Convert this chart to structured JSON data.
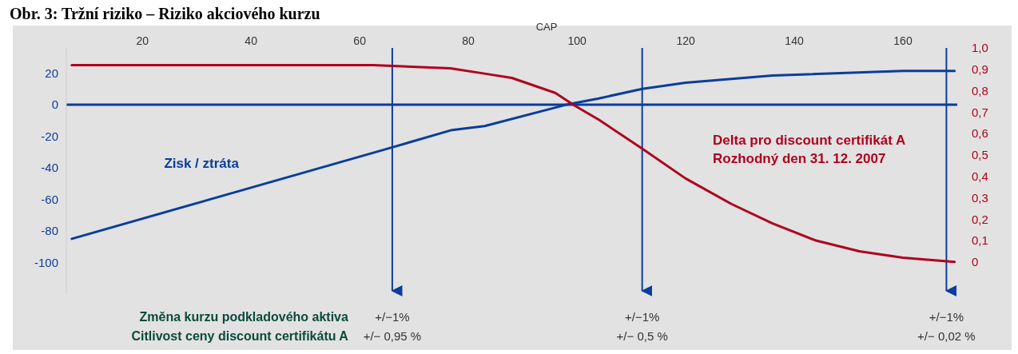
{
  "chart_data": {
    "type": "line",
    "title": "Obr. 3: Tržní riziko – Riziko akciového kurzu",
    "xlabel": "CAP",
    "xlim": [
      6,
      170
    ],
    "xticks": [
      20,
      40,
      60,
      80,
      100,
      120,
      140,
      160
    ],
    "ylim": [
      -120,
      36
    ],
    "yticks": [
      -100,
      -80,
      -60,
      -40,
      -20,
      0,
      20
    ],
    "y2lim": [
      -0.15,
      1.0
    ],
    "y2ticks": [
      {
        "value": 0,
        "label": "0"
      },
      {
        "value": 0.1,
        "label": "0,1"
      },
      {
        "value": 0.2,
        "label": "0,2"
      },
      {
        "value": 0.3,
        "label": "0,3"
      },
      {
        "value": 0.4,
        "label": "0,4"
      },
      {
        "value": 0.5,
        "label": "0,5"
      },
      {
        "value": 0.6,
        "label": "0,6"
      },
      {
        "value": 0.7,
        "label": "0,7"
      },
      {
        "value": 0.8,
        "label": "0,8"
      },
      {
        "value": 0.9,
        "label": "0,9"
      },
      {
        "value": 1.0,
        "label": "1,0"
      }
    ],
    "grid": false,
    "series": [
      {
        "name": "Zisk / ztráta",
        "color": "#0a3d9c",
        "x": [
          7,
          66,
          77,
          83,
          98,
          104,
          112,
          120,
          136,
          160,
          169.5
        ],
        "values": [
          -85,
          -27,
          -16,
          -13.5,
          0,
          4,
          10,
          14,
          18.5,
          21.5,
          21.5
        ]
      },
      {
        "name": "Delta pro discount certifikát A",
        "color": "#b0001e",
        "axis": "y2",
        "x": [
          7,
          62.5,
          76.7,
          83,
          88,
          96,
          99.6,
          104,
          112,
          120,
          128.5,
          136,
          144,
          152,
          160,
          169.5
        ],
        "values": [
          0.92,
          0.92,
          0.905,
          0.88,
          0.86,
          0.79,
          0.73,
          0.665,
          0.53,
          0.39,
          0.27,
          0.18,
          0.1,
          0.05,
          0.02,
          0
        ]
      }
    ],
    "ref_lines": [
      {
        "axis": "y",
        "value": 0,
        "color": "#0a3d9c"
      },
      {
        "axis": "x",
        "value": 66,
        "label": "+/−1%",
        "color": "#0a3d9c"
      },
      {
        "axis": "x",
        "value": 112,
        "label": "+/−1%",
        "color": "#0a3d9c"
      },
      {
        "axis": "x",
        "value": 168,
        "label": "+/−1%",
        "color": "#0a3d9c"
      }
    ],
    "annotations": [
      "Rozhodný den 31. 12. 2007",
      "Změna kurzu podkladového aktiva",
      "Citlivost ceny discount certifikátu A",
      "+/− 0,95 %",
      "+/− 0,5 %",
      "+/− 0,02 %"
    ]
  }
}
